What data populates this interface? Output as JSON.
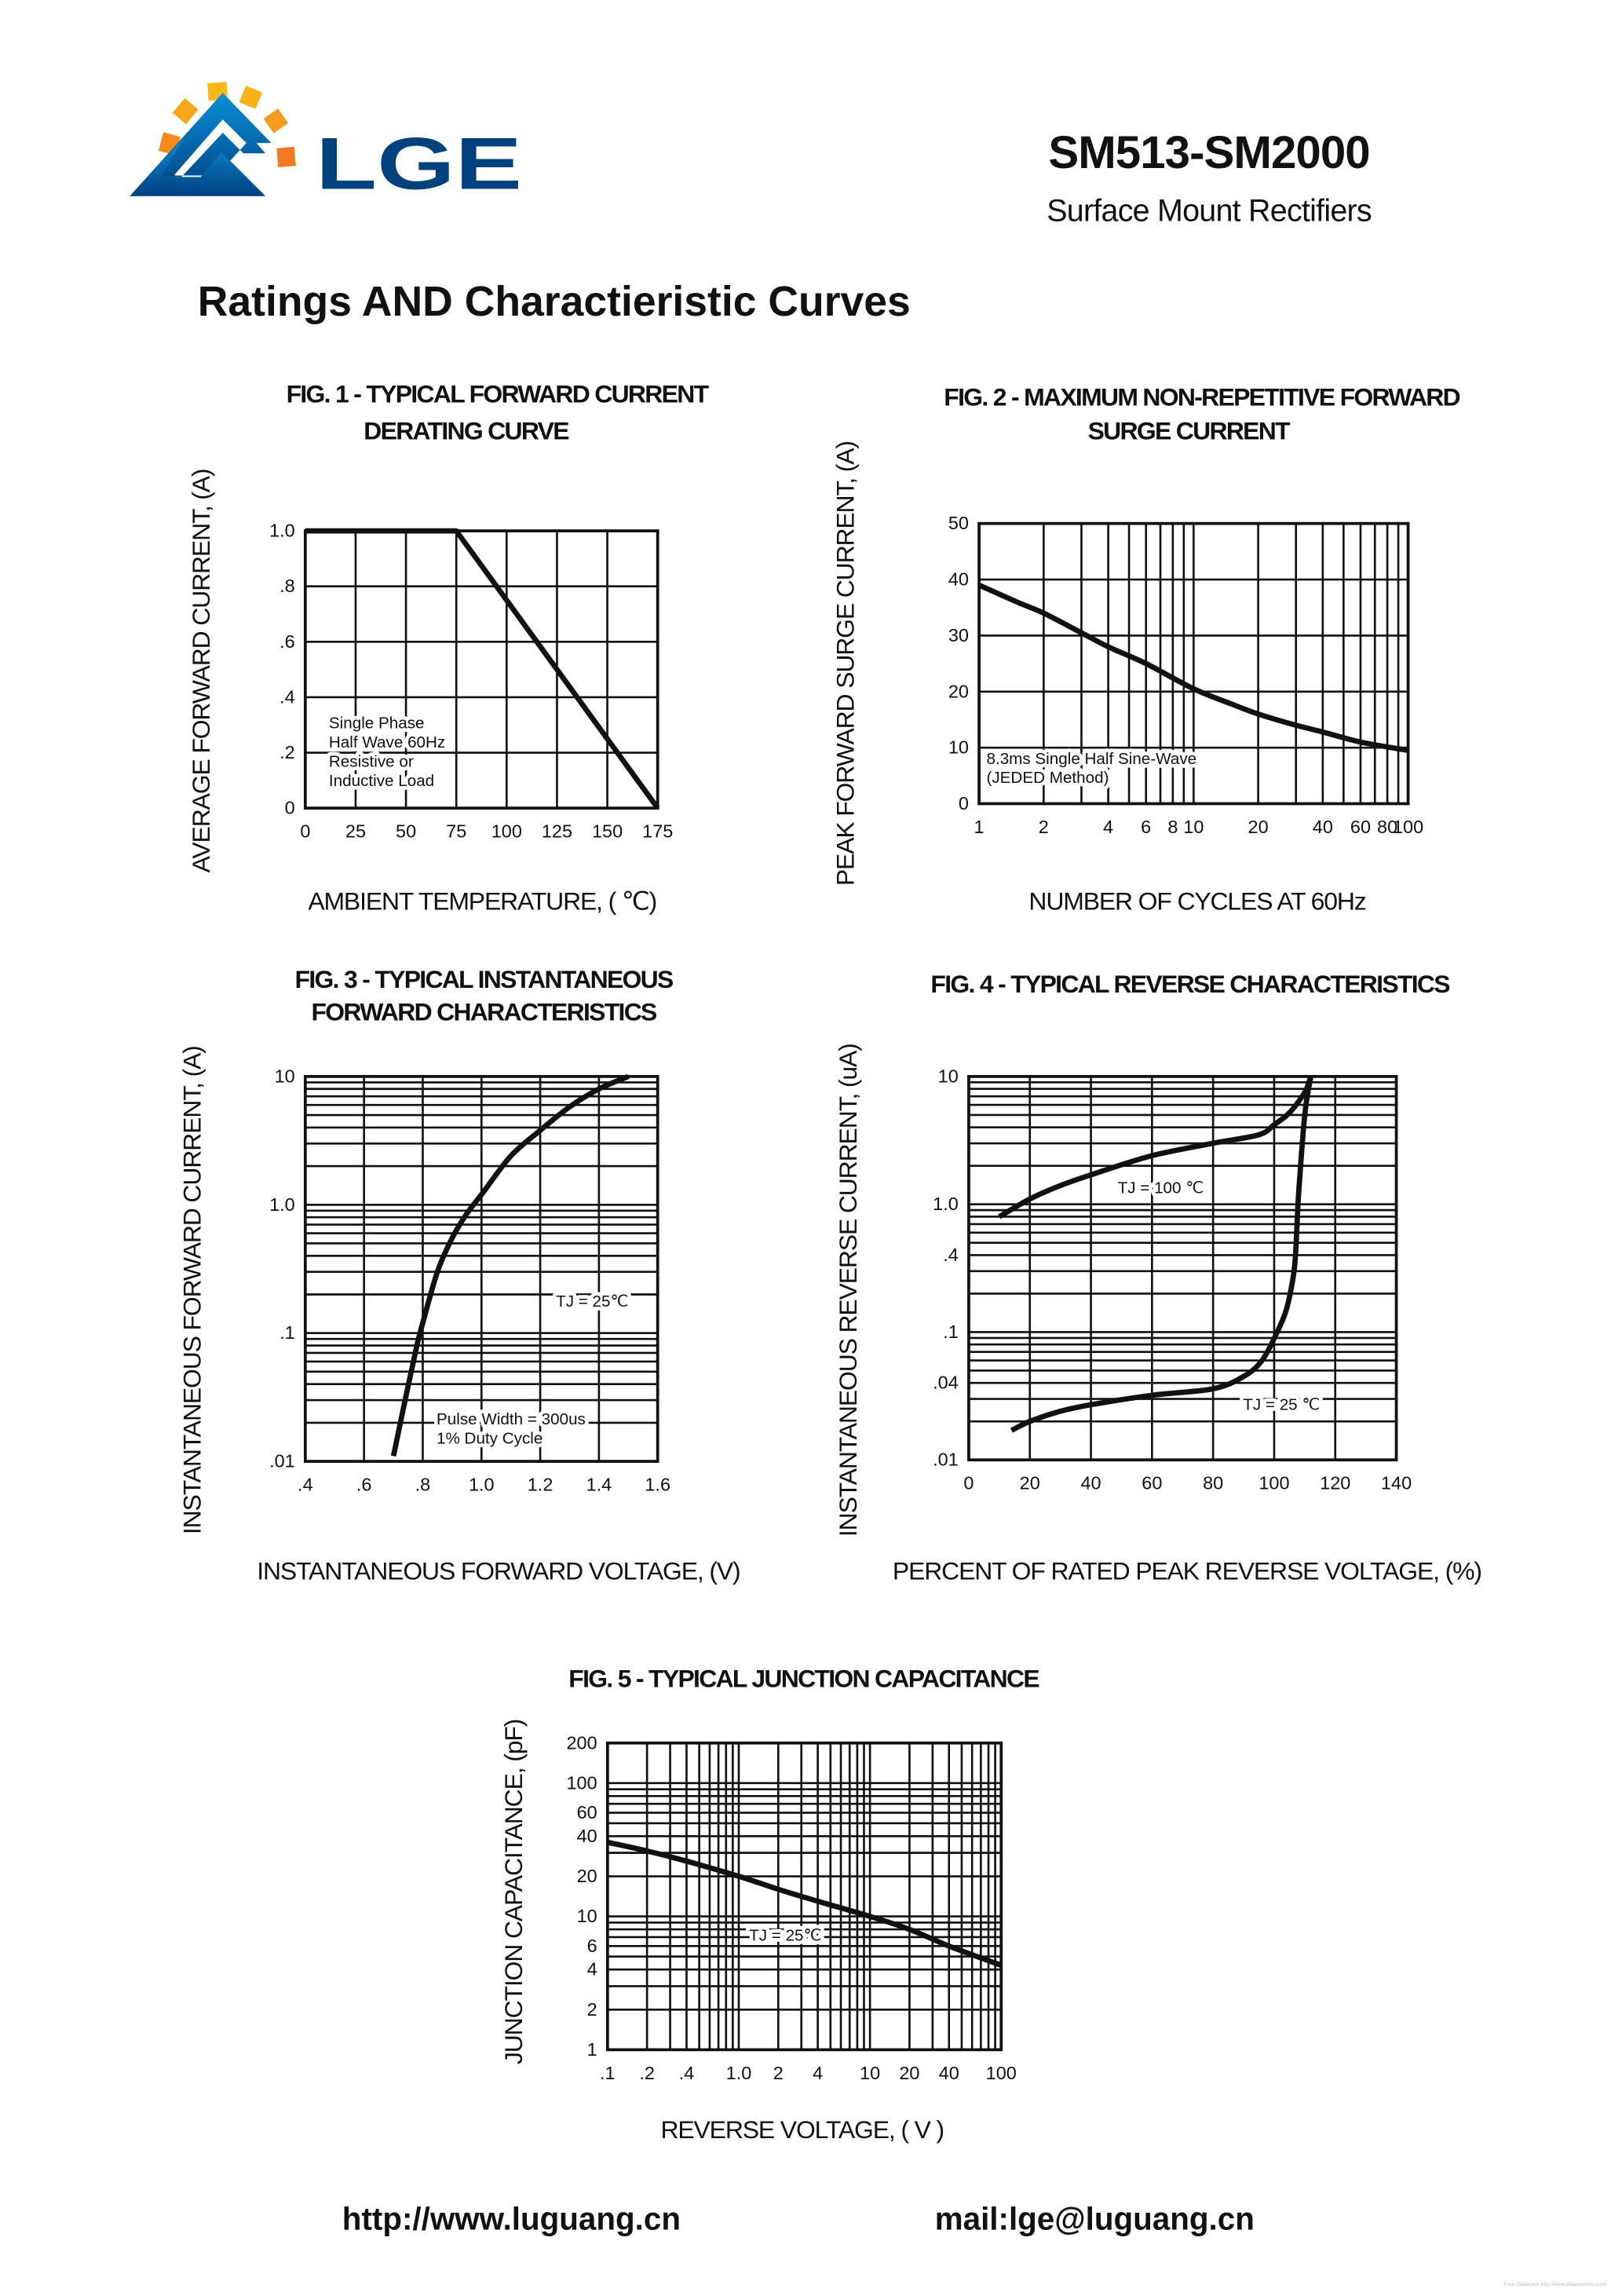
{
  "header": {
    "logo_text": "LGE",
    "part_number": "SM513-SM2000",
    "subtitle": "Surface Mount Rectifiers",
    "colors": {
      "logo_blue": "#00417e",
      "logo_orange": "#f39a1e"
    }
  },
  "page_title": "Ratings AND Charactieristic Curves",
  "footer": {
    "website": "http://www.luguang.cn",
    "email": "mail:lge@luguang.cn",
    "watermark": "Free Datasheet http://www.datasheet4u.com/"
  },
  "chart_data": [
    {
      "type": "line",
      "title": [
        "FIG. 1 - TYPICAL FORWARD CURRENT",
        "DERATING CURVE"
      ],
      "xlabel": "AMBIENT TEMPERATURE, ( ℃)",
      "ylabel": "AVERAGE  FORWARD CURRENT, (A)",
      "x_scale": "linear",
      "y_scale": "linear",
      "xlim": [
        0,
        175
      ],
      "ylim": [
        0,
        1.0
      ],
      "grid": true,
      "x_ticks": [
        {
          "value": 0,
          "label": "0"
        },
        {
          "value": 25,
          "label": "25"
        },
        {
          "value": 50,
          "label": "50"
        },
        {
          "value": 75,
          "label": "75"
        },
        {
          "value": 100,
          "label": "100"
        },
        {
          "value": 125,
          "label": "125"
        },
        {
          "value": 150,
          "label": "150"
        },
        {
          "value": 175,
          "label": "175"
        }
      ],
      "y_ticks": [
        {
          "value": 0,
          "label": "0"
        },
        {
          "value": 0.2,
          "label": ".2"
        },
        {
          "value": 0.4,
          "label": ".4"
        },
        {
          "value": 0.6,
          "label": ".6"
        },
        {
          "value": 0.8,
          "label": ".8"
        },
        {
          "value": 1.0,
          "label": "1.0"
        }
      ],
      "notes": [
        "Single Phase",
        "Half Wave 60Hz",
        "Resistive or",
        "Inductive Load"
      ],
      "series": [
        {
          "x": [
            0,
            75,
            175
          ],
          "y": [
            1.0,
            1.0,
            0
          ]
        }
      ]
    },
    {
      "type": "line",
      "title": [
        "FIG. 2 - MAXIMUM NON-REPETITIVE  FORWARD",
        "SURGE CURRENT"
      ],
      "xlabel": "NUMBER OF CYCLES AT 60Hz",
      "ylabel": "PEAK FORWARD SURGE CURRENT, (A)",
      "x_scale": "log",
      "y_scale": "linear",
      "xlim": [
        1,
        100
      ],
      "ylim": [
        0,
        50
      ],
      "grid": true,
      "x_ticks": [
        {
          "value": 1,
          "label": "1"
        },
        {
          "value": 2,
          "label": "2"
        },
        {
          "value": 4,
          "label": "4"
        },
        {
          "value": 6,
          "label": "6"
        },
        {
          "value": 8,
          "label": "8"
        },
        {
          "value": 10,
          "label": "10"
        },
        {
          "value": 20,
          "label": "20"
        },
        {
          "value": 40,
          "label": "40"
        },
        {
          "value": 60,
          "label": "60"
        },
        {
          "value": 80,
          "label": "80"
        },
        {
          "value": 100,
          "label": "100"
        }
      ],
      "y_ticks": [
        {
          "value": 0,
          "label": "0"
        },
        {
          "value": 10,
          "label": "10"
        },
        {
          "value": 20,
          "label": "20"
        },
        {
          "value": 30,
          "label": "30"
        },
        {
          "value": 40,
          "label": "40"
        },
        {
          "value": 50,
          "label": "50"
        }
      ],
      "notes": [
        "8.3ms Single Half Sine-Wave",
        "(JEDED Method)"
      ],
      "series": [
        {
          "x": [
            1,
            1.5,
            2,
            3,
            4,
            6,
            10,
            15,
            20,
            30,
            40,
            60,
            100
          ],
          "y": [
            39,
            36,
            34,
            30.5,
            28,
            25,
            20.5,
            17.8,
            16,
            14,
            12.8,
            11,
            9.5
          ]
        }
      ]
    },
    {
      "type": "line",
      "title": [
        "FIG. 3 - TYPICAL INSTANTANEOUS",
        "FORWARD CHARACTERISTICS"
      ],
      "xlabel": "INSTANTANEOUS FORWARD VOLTAGE, (V)",
      "ylabel": "INSTANTANEOUS FORWARD CURRENT, (A)",
      "x_scale": "linear",
      "y_scale": "log",
      "xlim": [
        0.4,
        1.6
      ],
      "ylim": [
        0.01,
        10
      ],
      "grid": true,
      "x_ticks": [
        {
          "value": 0.4,
          "label": ".4"
        },
        {
          "value": 0.6,
          "label": ".6"
        },
        {
          "value": 0.8,
          "label": ".8"
        },
        {
          "value": 1.0,
          "label": "1.0"
        },
        {
          "value": 1.2,
          "label": "1.2"
        },
        {
          "value": 1.4,
          "label": "1.4"
        },
        {
          "value": 1.6,
          "label": "1.6"
        }
      ],
      "y_ticks": [
        {
          "value": 0.01,
          "label": ".01"
        },
        {
          "value": 0.1,
          "label": ".1"
        },
        {
          "value": 1,
          "label": "1.0"
        },
        {
          "value": 10,
          "label": "10"
        }
      ],
      "notes": [
        "Pulse Width = 300us",
        "1% Duty Cycle"
      ],
      "series": [
        {
          "name": "TJ = 25℃",
          "x": [
            0.7,
            0.74,
            0.78,
            0.8,
            0.85,
            0.9,
            0.95,
            1.0,
            1.1,
            1.2,
            1.3,
            1.4,
            1.5
          ],
          "y": [
            0.011,
            0.03,
            0.08,
            0.12,
            0.3,
            0.55,
            0.85,
            1.2,
            2.4,
            3.8,
            5.8,
            8,
            10
          ]
        }
      ]
    },
    {
      "type": "line",
      "title": [
        "FIG. 4 - TYPICAL REVERSE CHARACTERISTICS"
      ],
      "xlabel": "PERCENT OF RATED PEAK REVERSE VOLTAGE, (%)",
      "ylabel": "INSTANTANEOUS REVERSE CURRENT, (uA)",
      "x_scale": "linear",
      "y_scale": "log",
      "xlim": [
        0,
        140
      ],
      "ylim": [
        0.01,
        10
      ],
      "grid": true,
      "x_ticks": [
        {
          "value": 0,
          "label": "0"
        },
        {
          "value": 20,
          "label": "20"
        },
        {
          "value": 40,
          "label": "40"
        },
        {
          "value": 60,
          "label": "60"
        },
        {
          "value": 80,
          "label": "80"
        },
        {
          "value": 100,
          "label": "100"
        },
        {
          "value": 120,
          "label": "120"
        },
        {
          "value": 140,
          "label": "140"
        }
      ],
      "y_ticks": [
        {
          "value": 0.01,
          "label": ".01"
        },
        {
          "value": 0.04,
          "label": ".04"
        },
        {
          "value": 0.1,
          "label": ".1"
        },
        {
          "value": 0.4,
          "label": ".4"
        },
        {
          "value": 1,
          "label": "1.0"
        },
        {
          "value": 10,
          "label": "10"
        }
      ],
      "notes": [],
      "series": [
        {
          "name": "TJ = 100 ℃",
          "x": [
            10,
            20,
            30,
            40,
            60,
            80,
            95,
            100,
            105,
            110,
            112
          ],
          "y": [
            0.8,
            1.1,
            1.4,
            1.7,
            2.4,
            3.0,
            3.5,
            4.2,
            5.2,
            7.5,
            10
          ]
        },
        {
          "name": "TJ = 25 ℃",
          "x": [
            14,
            20,
            30,
            40,
            60,
            80,
            90,
            96,
            101,
            104,
            106,
            107,
            108,
            110,
            112
          ],
          "y": [
            0.017,
            0.02,
            0.024,
            0.027,
            0.032,
            0.036,
            0.045,
            0.06,
            0.1,
            0.15,
            0.25,
            0.4,
            1.2,
            5,
            10
          ]
        }
      ]
    },
    {
      "type": "line",
      "title": [
        "FIG. 5 - TYPICAL JUNCTION CAPACITANCE"
      ],
      "xlabel": "REVERSE VOLTAGE, ( V )",
      "ylabel": "JUNCTION CAPACITANCE, (pF)",
      "x_scale": "log",
      "y_scale": "log",
      "xlim": [
        0.1,
        100
      ],
      "ylim": [
        1,
        200
      ],
      "grid": true,
      "x_ticks": [
        {
          "value": 0.1,
          "label": ".1"
        },
        {
          "value": 0.2,
          "label": ".2"
        },
        {
          "value": 0.4,
          "label": ".4"
        },
        {
          "value": 1,
          "label": "1.0"
        },
        {
          "value": 2,
          "label": "2"
        },
        {
          "value": 4,
          "label": "4"
        },
        {
          "value": 10,
          "label": "10"
        },
        {
          "value": 20,
          "label": "20"
        },
        {
          "value": 40,
          "label": "40"
        },
        {
          "value": 100,
          "label": "100"
        }
      ],
      "y_ticks": [
        {
          "value": 1,
          "label": "1"
        },
        {
          "value": 2,
          "label": "2"
        },
        {
          "value": 4,
          "label": "4"
        },
        {
          "value": 6,
          "label": "6"
        },
        {
          "value": 10,
          "label": "10"
        },
        {
          "value": 20,
          "label": "20"
        },
        {
          "value": 40,
          "label": "40"
        },
        {
          "value": 60,
          "label": "60"
        },
        {
          "value": 100,
          "label": "100"
        },
        {
          "value": 200,
          "label": "200"
        }
      ],
      "notes": [],
      "series": [
        {
          "name": "TJ = 25℃",
          "x": [
            0.1,
            0.2,
            0.4,
            1,
            2,
            4,
            10,
            20,
            40,
            100
          ],
          "y": [
            36,
            31,
            26,
            20,
            16,
            13,
            10,
            8,
            6,
            4.3
          ]
        }
      ]
    }
  ]
}
